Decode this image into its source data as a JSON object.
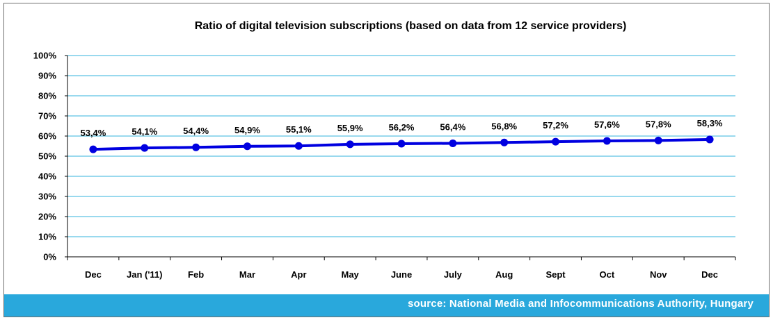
{
  "colors": {
    "line": "#0000e0",
    "gridline": "#33b3dd",
    "footer_band": "#29a8dc",
    "footer_text": "#ffffff"
  },
  "footer": {
    "source": "source: National Media and Infocommunications Authority, Hungary"
  },
  "chart_data": {
    "type": "line",
    "title": "Ratio of digital television subscriptions (based on data from 12 service providers)",
    "xlabel": "",
    "ylabel": "",
    "ylim": [
      0,
      100
    ],
    "y_ticks": [
      "0%",
      "10%",
      "20%",
      "30%",
      "40%",
      "50%",
      "60%",
      "70%",
      "80%",
      "90%",
      "100%"
    ],
    "grid": true,
    "categories": [
      "Dec",
      "Jan ('11)",
      "Feb",
      "Mar",
      "Apr",
      "May",
      "June",
      "July",
      "Aug",
      "Sept",
      "Oct",
      "Nov",
      "Dec"
    ],
    "series": [
      {
        "values": [
          53.4,
          54.1,
          54.4,
          54.9,
          55.1,
          55.9,
          56.2,
          56.4,
          56.8,
          57.2,
          57.6,
          57.8,
          58.3
        ],
        "labels": [
          "53,4%",
          "54,1%",
          "54,4%",
          "54,9%",
          "55,1%",
          "55,9%",
          "56,2%",
          "56,4%",
          "56,8%",
          "57,2%",
          "57,6%",
          "57,8%",
          "58,3%"
        ]
      }
    ]
  }
}
